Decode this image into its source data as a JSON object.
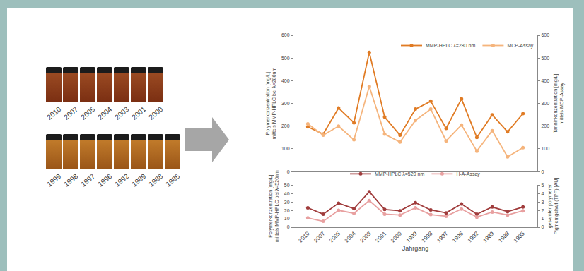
{
  "samples": {
    "rows": [
      [
        "2010",
        "2007",
        "2005",
        "2004",
        "2003",
        "2001",
        "2000"
      ],
      [
        "1999",
        "1998",
        "1997",
        "1996",
        "1992",
        "1989",
        "1988",
        "1985"
      ]
    ]
  },
  "chart_data": [
    {
      "type": "line",
      "categories": [
        "2010",
        "2007",
        "2005",
        "2004",
        "2003",
        "2001",
        "2000",
        "1999",
        "1998",
        "1997",
        "1996",
        "1992",
        "1989",
        "1988",
        "1985"
      ],
      "tick_labels": "y",
      "grid": false,
      "legend": "upper right",
      "y_label": [
        "Polymerkonzentration [mg/L]",
        "mittels MMP-HPLC bei λ=280nm"
      ],
      "y2_label": [
        "Tanninkonzentration [mg/L]",
        "mittels MCP-Assay"
      ],
      "ylim": [
        0,
        600
      ],
      "yticks": [
        0,
        100,
        200,
        300,
        400,
        500,
        600
      ],
      "y2lim": [
        0,
        600
      ],
      "y2ticks": [
        0,
        100,
        200,
        300,
        400,
        500,
        600
      ],
      "series": [
        {
          "name": "MMP-HPLC λ=280 nm",
          "color": "#e07b24",
          "marker": "circle",
          "values": [
            197,
            165,
            280,
            215,
            525,
            240,
            160,
            275,
            310,
            190,
            320,
            150,
            250,
            175,
            255
          ]
        },
        {
          "name": "MCP-Assay",
          "color": "#f5b47c",
          "marker": "circle",
          "axis": "y2",
          "values": [
            210,
            160,
            200,
            140,
            375,
            165,
            130,
            225,
            275,
            135,
            205,
            90,
            180,
            65,
            105
          ]
        }
      ]
    },
    {
      "type": "line",
      "categories": [
        "2010",
        "2007",
        "2005",
        "2004",
        "2003",
        "2001",
        "2000",
        "1999",
        "1998",
        "1997",
        "1996",
        "1992",
        "1989",
        "1988",
        "1985"
      ],
      "x_label": "Jahrgang",
      "grid": false,
      "legend": "above",
      "y_label": [
        "Polymerkonzentration [mg/L]",
        "mittels MMP-HPLC bei λ=520nm"
      ],
      "y2_label": [
        "gesamter polymerer",
        "Pigmentgehalt (TPP) [AU]"
      ],
      "ylim": [
        0,
        50
      ],
      "yticks": [
        0,
        10,
        20,
        30,
        40,
        50
      ],
      "y2lim": [
        0,
        5
      ],
      "y2ticks": [
        0,
        1,
        2,
        3,
        4,
        5
      ],
      "series": [
        {
          "name": "MMP-HPLC λ=520 nm",
          "color": "#a03c3c",
          "marker": "circle",
          "values": [
            23,
            15.5,
            28.5,
            22,
            42,
            21,
            19.5,
            29,
            20.5,
            17,
            27.5,
            15.5,
            24,
            18.5,
            24
          ]
        },
        {
          "name": "H-A-Assay",
          "color": "#e8a0a0",
          "marker": "circle",
          "axis": "y2",
          "values": [
            1.1,
            0.7,
            2.0,
            1.65,
            3.15,
            1.55,
            1.45,
            2.3,
            1.5,
            1.3,
            2.15,
            1.2,
            1.8,
            1.45,
            1.95
          ]
        }
      ]
    }
  ]
}
